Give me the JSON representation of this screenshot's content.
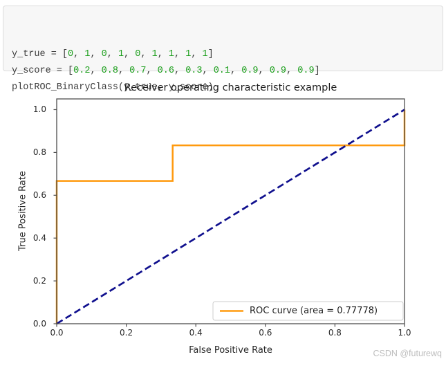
{
  "page": {
    "background": "#ffffff",
    "watermark": "CSDN @futurewq"
  },
  "code_block": {
    "background": "#f7f7f7",
    "border_color": "#dcdcdc",
    "text_color": "#3b3b3b",
    "number_color": "#1a9e1a",
    "lines": [
      [
        {
          "text": "y_true = [",
          "type": "plain"
        },
        {
          "text": "0",
          "type": "number"
        },
        {
          "text": ", ",
          "type": "plain"
        },
        {
          "text": "1",
          "type": "number"
        },
        {
          "text": ", ",
          "type": "plain"
        },
        {
          "text": "0",
          "type": "number"
        },
        {
          "text": ", ",
          "type": "plain"
        },
        {
          "text": "1",
          "type": "number"
        },
        {
          "text": ", ",
          "type": "plain"
        },
        {
          "text": "0",
          "type": "number"
        },
        {
          "text": ", ",
          "type": "plain"
        },
        {
          "text": "1",
          "type": "number"
        },
        {
          "text": ", ",
          "type": "plain"
        },
        {
          "text": "1",
          "type": "number"
        },
        {
          "text": ", ",
          "type": "plain"
        },
        {
          "text": "1",
          "type": "number"
        },
        {
          "text": ", ",
          "type": "plain"
        },
        {
          "text": "1",
          "type": "number"
        },
        {
          "text": "]",
          "type": "plain"
        }
      ],
      [
        {
          "text": "y_score = [",
          "type": "plain"
        },
        {
          "text": "0.2",
          "type": "number"
        },
        {
          "text": ", ",
          "type": "plain"
        },
        {
          "text": "0.8",
          "type": "number"
        },
        {
          "text": ", ",
          "type": "plain"
        },
        {
          "text": "0.7",
          "type": "number"
        },
        {
          "text": ", ",
          "type": "plain"
        },
        {
          "text": "0.6",
          "type": "number"
        },
        {
          "text": ", ",
          "type": "plain"
        },
        {
          "text": "0.3",
          "type": "number"
        },
        {
          "text": ", ",
          "type": "plain"
        },
        {
          "text": "0.1",
          "type": "number"
        },
        {
          "text": ", ",
          "type": "plain"
        },
        {
          "text": "0.9",
          "type": "number"
        },
        {
          "text": ", ",
          "type": "plain"
        },
        {
          "text": "0.9",
          "type": "number"
        },
        {
          "text": ", ",
          "type": "plain"
        },
        {
          "text": "0.9",
          "type": "number"
        },
        {
          "text": "]",
          "type": "plain"
        }
      ],
      [
        {
          "text": "plotROC_BinaryClass(y_true, y_score)",
          "type": "plain"
        }
      ]
    ]
  },
  "chart_data": {
    "type": "line",
    "title": "Receiver operating characteristic example",
    "xlabel": "False Positive Rate",
    "ylabel": "True Positive Rate",
    "xlim": [
      0.0,
      1.0
    ],
    "ylim": [
      0.0,
      1.05
    ],
    "grid": false,
    "background": "#ffffff",
    "spine_color": "#4d4d4d",
    "xticks": {
      "values": [
        0.0,
        0.2,
        0.4,
        0.6,
        0.8,
        1.0
      ],
      "labels": [
        "0.0",
        "0.2",
        "0.4",
        "0.6",
        "0.8",
        "1.0"
      ]
    },
    "yticks": {
      "values": [
        0.0,
        0.2,
        0.4,
        0.6,
        0.8,
        1.0
      ],
      "labels": [
        "0.0",
        "0.2",
        "0.4",
        "0.6",
        "0.8",
        "1.0"
      ]
    },
    "series": [
      {
        "name": "ROC curve",
        "color": "#ff9a0e",
        "dash": "solid",
        "linewidth": 2.5,
        "points": [
          [
            0.0,
            0.0
          ],
          [
            0.0,
            0.66667
          ],
          [
            0.33333,
            0.66667
          ],
          [
            0.33333,
            0.83333
          ],
          [
            1.0,
            0.83333
          ],
          [
            1.0,
            1.0
          ]
        ]
      },
      {
        "name": "chance diagonal",
        "color": "#10108e",
        "dash": "dashed",
        "linewidth": 2.7,
        "points": [
          [
            0.0,
            0.0
          ],
          [
            1.0,
            1.0
          ]
        ]
      }
    ],
    "legend": {
      "position": "lower right",
      "entries": [
        {
          "label": "ROC curve (area = 0.77778)",
          "color": "#ff9a0e",
          "style": "solid"
        }
      ]
    },
    "auc": 0.77778
  }
}
